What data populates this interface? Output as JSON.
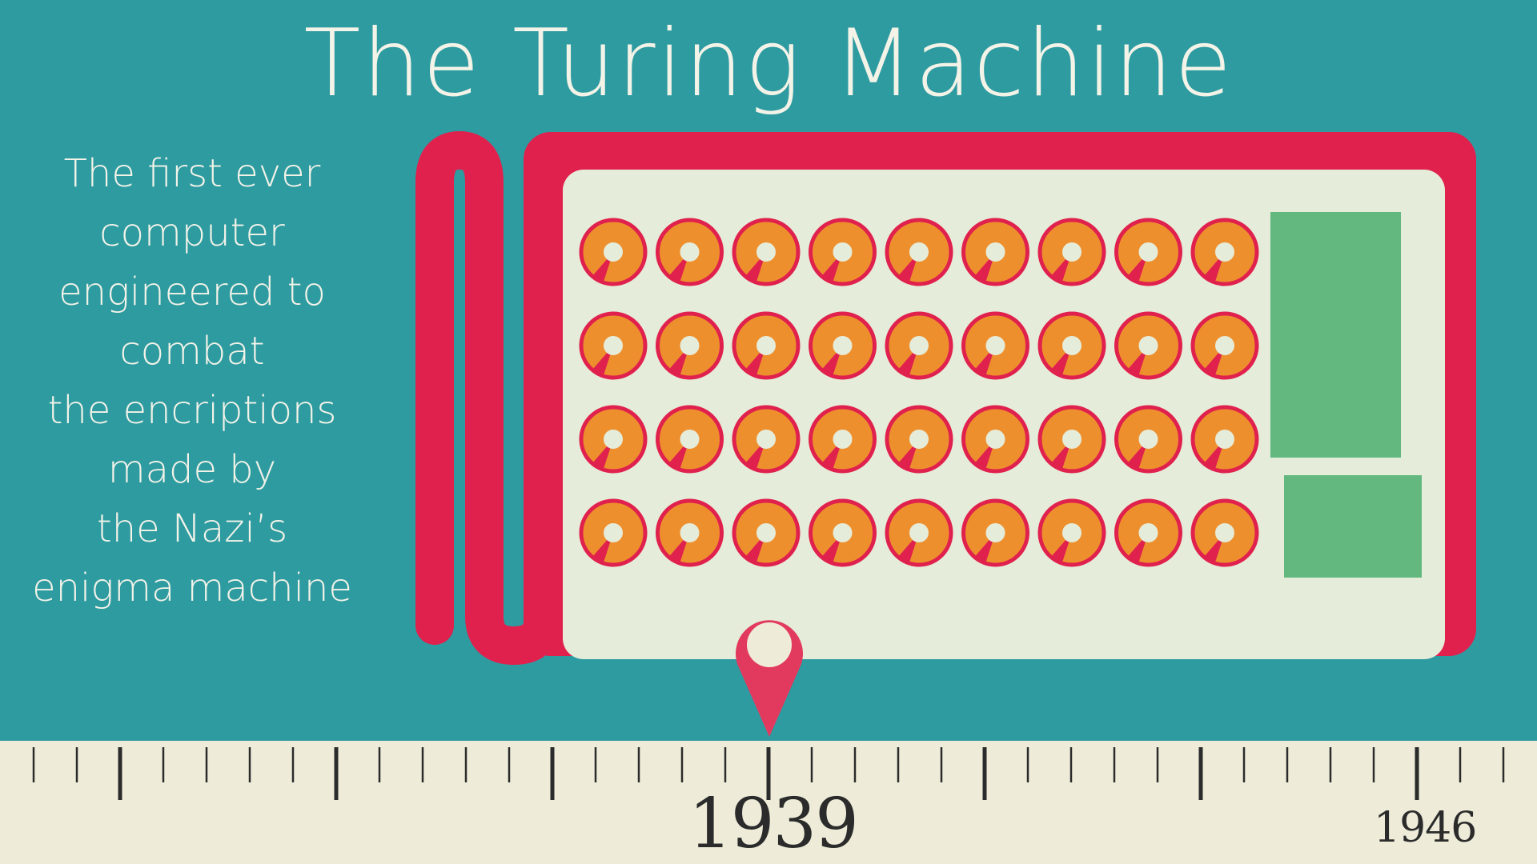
{
  "title": "The Turing Machine",
  "description": {
    "lines": [
      "The first ever",
      "computer",
      "engineered to",
      "combat",
      "the encriptions",
      "made by",
      "the Nazi’s",
      "enigma machine"
    ]
  },
  "timeline": {
    "marker_year": "1939",
    "end_year": "1946"
  },
  "machine": {
    "rotor_rows": 4,
    "rotor_columns": 9,
    "panel_count": 2
  },
  "colors": {
    "background": "#2e9ba1",
    "machine_frame": "#e0214d",
    "machine_face": "#e5ecd9",
    "rotor_fill": "#ee8f2e",
    "panel": "#62b87e",
    "ruler": "#eeecd9"
  }
}
